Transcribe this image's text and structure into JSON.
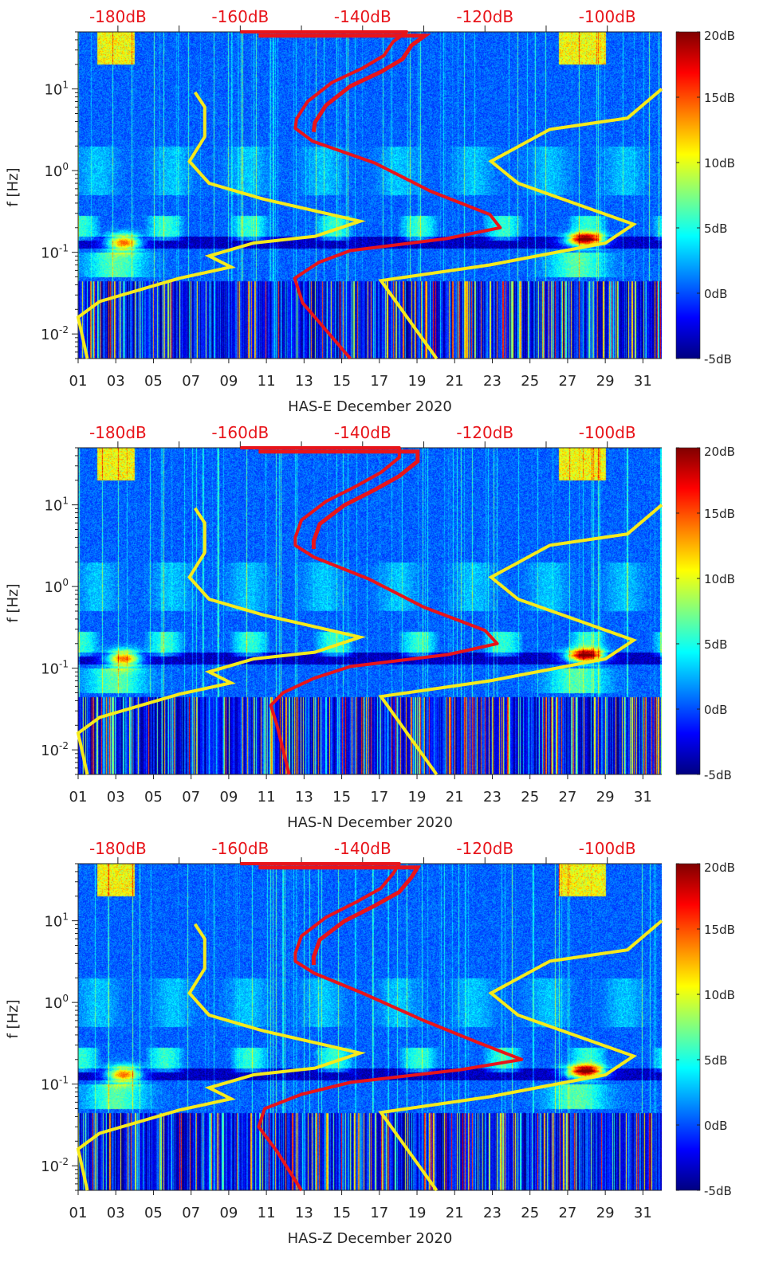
{
  "chart_data": {
    "type": "heatmap",
    "subtype": "spectrogram with PSD curves",
    "x_ticks": [
      "01",
      "03",
      "05",
      "07",
      "09",
      "11",
      "13",
      "15",
      "17",
      "19",
      "21",
      "23",
      "25",
      "27",
      "29",
      "31"
    ],
    "x_tick_values": [
      1,
      3,
      5,
      7,
      9,
      11,
      13,
      15,
      17,
      19,
      21,
      23,
      25,
      27,
      29,
      31
    ],
    "xlim": [
      1,
      32
    ],
    "ylabel": "f [Hz]",
    "yscale": "log",
    "ylim": [
      0.005,
      50
    ],
    "y_ticks": [
      {
        "base": "10",
        "exp": "1",
        "value": 10
      },
      {
        "base": "10",
        "exp": "0",
        "value": 1
      },
      {
        "base": "10",
        "exp": "-1",
        "value": 0.1
      },
      {
        "base": "10",
        "exp": "-2",
        "value": 0.01
      }
    ],
    "top_axis": {
      "unit": "dB",
      "range": [
        -186.5,
        -91.1
      ],
      "ticks": [
        {
          "label": "-180dB",
          "value": -180
        },
        {
          "label": "-160dB",
          "value": -160
        },
        {
          "label": "-140dB",
          "value": -140
        },
        {
          "label": "-120dB",
          "value": -120
        },
        {
          "label": "-100dB",
          "value": -100
        }
      ],
      "color": "#e8141a"
    },
    "colorbar": {
      "colormap": "jet",
      "range": [
        -5,
        20
      ],
      "ticks": [
        {
          "label": "20dB",
          "value": 20
        },
        {
          "label": "15dB",
          "value": 15
        },
        {
          "label": "10dB",
          "value": 10
        },
        {
          "label": "5dB",
          "value": 5
        },
        {
          "label": "0dB",
          "value": 0
        },
        {
          "label": "-5dB",
          "value": -5
        }
      ]
    },
    "model_curves": {
      "color": "#f5ea1c",
      "low_noise_model": [
        [
          -167.4,
          9.1
        ],
        [
          -165.8,
          6
        ],
        [
          -165.8,
          2.6
        ],
        [
          -168.3,
          1.3
        ],
        [
          -165.1,
          0.7
        ],
        [
          -156.3,
          0.45
        ],
        [
          -140.4,
          0.24
        ],
        [
          -147.8,
          0.157
        ],
        [
          -157.8,
          0.13
        ],
        [
          -165.1,
          0.09
        ],
        [
          -161.5,
          0.066
        ],
        [
          -170,
          0.048
        ],
        [
          -183,
          0.025
        ],
        [
          -186.5,
          0.016
        ],
        [
          -185,
          0.005
        ]
      ],
      "high_noise_model": [
        [
          -91.1,
          10
        ],
        [
          -96.7,
          4.4
        ],
        [
          -109.4,
          3.2
        ],
        [
          -119,
          1.3
        ],
        [
          -114.6,
          0.7
        ],
        [
          -95.7,
          0.22
        ],
        [
          -100.3,
          0.13
        ],
        [
          -119.2,
          0.07
        ],
        [
          -137,
          0.045
        ],
        [
          -127.9,
          0.005
        ]
      ]
    },
    "panels": [
      {
        "station": "HAS-E",
        "xlabel": "HAS-E December 2020",
        "psd_curve": [
          [
            -160,
            50
          ],
          [
            -132.8,
            50
          ],
          [
            -135,
            38
          ],
          [
            -136.5,
            25.7
          ],
          [
            -140,
            18
          ],
          [
            -145,
            12
          ],
          [
            -149,
            7
          ],
          [
            -150.8,
            4.3
          ],
          [
            -151,
            3.3
          ],
          [
            -148.2,
            2.3
          ],
          [
            -138,
            1.24
          ],
          [
            -128.9,
            0.56
          ],
          [
            -119.2,
            0.29
          ],
          [
            -117.5,
            0.2
          ],
          [
            -126.3,
            0.147
          ],
          [
            -142,
            0.105
          ],
          [
            -147.2,
            0.075
          ],
          [
            -151.1,
            0.048
          ],
          [
            -149.8,
            0.024
          ],
          [
            -142,
            0.005
          ]
        ]
      },
      {
        "station": "HAS-N",
        "xlabel": "HAS-N December 2020",
        "psd_curve": [
          [
            -160,
            50
          ],
          [
            -134,
            50
          ],
          [
            -134,
            38
          ],
          [
            -137,
            25
          ],
          [
            -141,
            17
          ],
          [
            -146,
            11
          ],
          [
            -150,
            6.5
          ],
          [
            -151,
            4
          ],
          [
            -151,
            3.2
          ],
          [
            -148,
            2.3
          ],
          [
            -139,
            1.24
          ],
          [
            -130,
            0.56
          ],
          [
            -120,
            0.29
          ],
          [
            -118,
            0.2
          ],
          [
            -126,
            0.147
          ],
          [
            -142,
            0.105
          ],
          [
            -148,
            0.075
          ],
          [
            -153,
            0.05
          ],
          [
            -155,
            0.035
          ],
          [
            -154,
            0.02
          ],
          [
            -152,
            0.005
          ]
        ]
      },
      {
        "station": "HAS-Z",
        "xlabel": "HAS-Z December 2020",
        "psd_curve": [
          [
            -160,
            50
          ],
          [
            -134,
            50
          ],
          [
            -135,
            38
          ],
          [
            -137,
            25
          ],
          [
            -141,
            17
          ],
          [
            -146,
            11
          ],
          [
            -150,
            6.5
          ],
          [
            -151,
            4
          ],
          [
            -151,
            3.2
          ],
          [
            -148,
            2.3
          ],
          [
            -140,
            1.3
          ],
          [
            -130,
            0.6
          ],
          [
            -121,
            0.32
          ],
          [
            -114,
            0.2
          ],
          [
            -124,
            0.15
          ],
          [
            -142,
            0.105
          ],
          [
            -150,
            0.075
          ],
          [
            -156,
            0.05
          ],
          [
            -157,
            0.03
          ],
          [
            -154,
            0.015
          ],
          [
            -150,
            0.005
          ]
        ]
      }
    ]
  }
}
